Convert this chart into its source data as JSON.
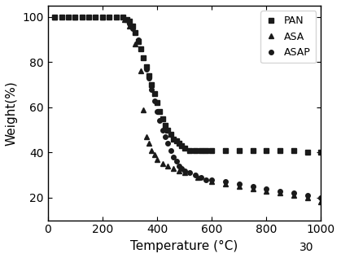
{
  "title": "",
  "xlabel": "Temperature (°C)",
  "ylabel": "Weight(%)",
  "xlim": [
    0,
    1000
  ],
  "ylim": [
    10,
    105
  ],
  "yticks": [
    20,
    40,
    60,
    80,
    100
  ],
  "xticks": [
    0,
    200,
    400,
    600,
    800,
    1000
  ],
  "background_color": "#ffffff",
  "footnote": "30",
  "series": {
    "PAN": {
      "marker": "s",
      "color": "#1a1a1a",
      "markersize": 4,
      "x": [
        25,
        50,
        75,
        100,
        125,
        150,
        175,
        200,
        225,
        250,
        275,
        290,
        300,
        310,
        320,
        330,
        340,
        350,
        360,
        370,
        380,
        390,
        400,
        410,
        420,
        430,
        440,
        450,
        460,
        470,
        480,
        490,
        500,
        520,
        540,
        560,
        580,
        600,
        650,
        700,
        750,
        800,
        850,
        900,
        950,
        1000
      ],
      "y": [
        100,
        100,
        100,
        100,
        100,
        100,
        100,
        100,
        100,
        100,
        100,
        99,
        98,
        96,
        93,
        89,
        86,
        82,
        78,
        74,
        70,
        66,
        62,
        58,
        55,
        52,
        50,
        48,
        46,
        45,
        44,
        43,
        42,
        41,
        41,
        41,
        41,
        41,
        41,
        41,
        41,
        41,
        41,
        41,
        40,
        40
      ]
    },
    "ASA": {
      "marker": "^",
      "color": "#1a1a1a",
      "markersize": 5,
      "x": [
        25,
        100,
        200,
        280,
        300,
        320,
        340,
        350,
        360,
        370,
        380,
        390,
        400,
        420,
        440,
        460,
        480,
        500,
        550,
        600,
        650,
        700,
        750,
        800,
        850,
        900,
        950,
        1000
      ],
      "y": [
        100,
        100,
        100,
        99,
        96,
        88,
        76,
        59,
        47,
        44,
        41,
        39,
        37,
        35,
        34,
        33,
        32,
        31,
        29,
        27,
        26,
        25,
        24,
        23,
        22,
        21,
        20,
        18
      ]
    },
    "ASAP": {
      "marker": "o",
      "color": "#1a1a1a",
      "markersize": 4,
      "x": [
        25,
        50,
        75,
        100,
        125,
        150,
        175,
        200,
        225,
        250,
        275,
        290,
        300,
        310,
        320,
        330,
        340,
        350,
        360,
        370,
        380,
        390,
        400,
        410,
        420,
        430,
        440,
        450,
        460,
        470,
        480,
        490,
        500,
        520,
        540,
        560,
        580,
        600,
        650,
        700,
        750,
        800,
        850,
        900,
        950,
        1000
      ],
      "y": [
        100,
        100,
        100,
        100,
        100,
        100,
        100,
        100,
        100,
        100,
        100,
        99,
        97,
        95,
        93,
        90,
        86,
        82,
        77,
        73,
        68,
        63,
        58,
        54,
        50,
        47,
        44,
        41,
        38,
        36,
        34,
        33,
        32,
        31,
        30,
        29,
        28,
        28,
        27,
        26,
        25,
        24,
        23,
        22,
        21,
        20
      ]
    }
  }
}
